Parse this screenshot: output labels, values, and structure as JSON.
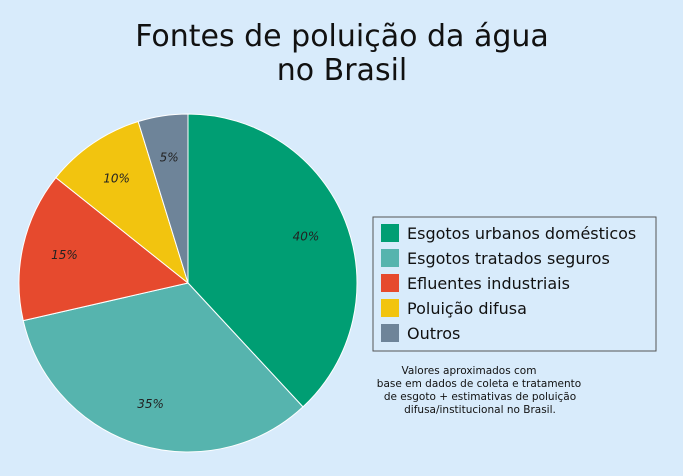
{
  "chart_data": {
    "type": "pie",
    "title": [
      "Fontes de poluição da água",
      "no Brasil"
    ],
    "categories": [
      "Esgotos urbanos domésticos",
      "Esgotos tratados seguros",
      "Efluentes industriais",
      "Poluição difusa",
      "Outros"
    ],
    "values": [
      40,
      35,
      15,
      10,
      5
    ],
    "value_labels": [
      "40%",
      "35%",
      "15%",
      "10%",
      "5%"
    ],
    "colors": [
      "#009e73",
      "#56b4ae",
      "#e64a2e",
      "#f2c40f",
      "#6e8499"
    ],
    "start_angle": "12 o'clock, clockwise",
    "legend_position": "right",
    "note": [
      "Valores aproximados com",
      "base em dados de coleta e tratamento",
      "de esgoto + estimativas de poluição",
      "difusa/institucional no Brasil."
    ]
  }
}
